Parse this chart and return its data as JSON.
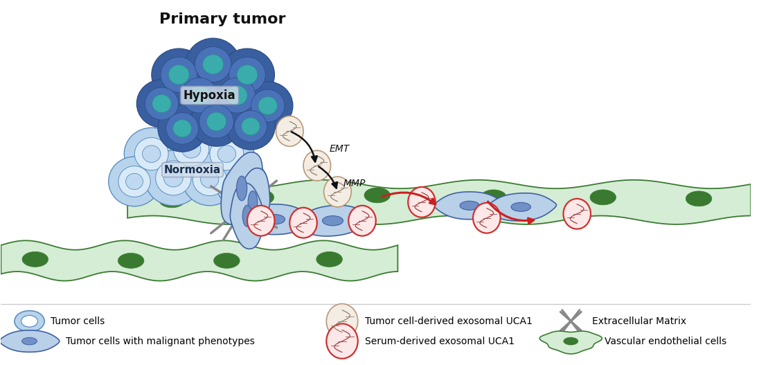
{
  "title": "Primary tumor",
  "bg_color": "#ffffff",
  "hypoxia_label": "Hypoxia",
  "normoxia_label": "Normoxia",
  "emt_label": "EMT",
  "mmp_label": "MMP",
  "colors": {
    "hypoxia_dark_blue": "#3a5fa0",
    "hypoxia_medium_blue": "#4a72b8",
    "hypoxia_teal": "#3aacac",
    "normoxia_light_blue": "#b8d4ec",
    "normoxia_medium_blue": "#5a8ec0",
    "normoxia_inner": "#d8eaf8",
    "vessel_green_fill": "#d4edd4",
    "vessel_green_dark": "#3a7a30",
    "vessel_border": "#3a7a30",
    "malignant_fill": "#b8d0e8",
    "malignant_border": "#4060a0",
    "malignant_nucleus": "#4a6aaa",
    "exosome_tan_border": "#b89878",
    "exosome_tan_fill": "#f4ede4",
    "exosome_tan_dna": "#908070",
    "exosome_red_border": "#d03030",
    "exosome_red_fill": "#fce8e8",
    "exosome_red_dna": "#a04040",
    "ecm_gray": "#808080",
    "arrow_black": "#111111",
    "arrow_red": "#cc2020",
    "label_box_fill": "#d0dce8",
    "label_box_edge": "#8898b8",
    "normoxia_text": "#1a3050"
  }
}
